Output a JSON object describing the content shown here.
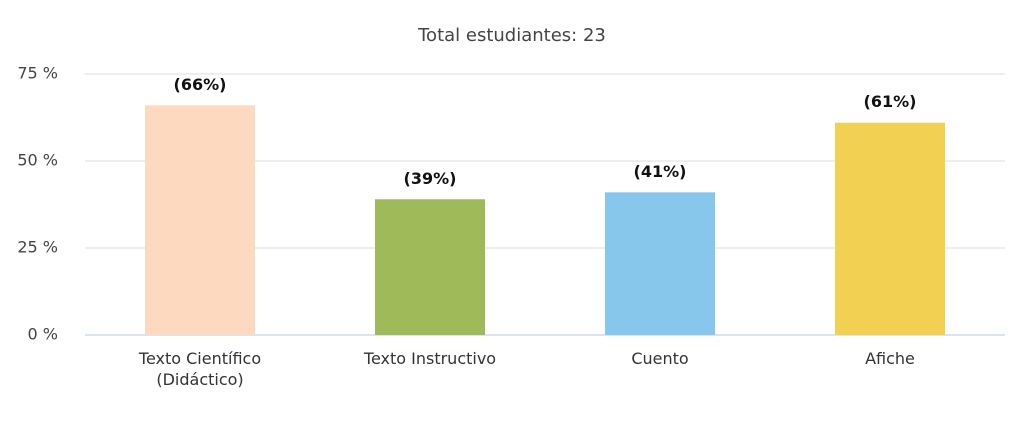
{
  "chart_data": {
    "type": "bar",
    "title": "Total estudiantes: 23",
    "categories": [
      "Texto Científico\n(Didáctico)",
      "Texto Instructivo",
      "Cuento",
      "Afiche"
    ],
    "values": [
      66,
      39,
      41,
      61
    ],
    "value_labels": [
      "(66%)",
      "(39%)",
      "(41%)",
      "(61%)"
    ],
    "colors": [
      "#fdd9bf",
      "#9fba58",
      "#87c7ec",
      "#f2d052"
    ],
    "ylim": [
      0,
      75
    ],
    "yticks": [
      {
        "value": 0,
        "label": "0 %"
      },
      {
        "value": 25,
        "label": "25 %"
      },
      {
        "value": 50,
        "label": "50 %"
      },
      {
        "value": 75,
        "label": "75 %"
      }
    ],
    "grid": true
  }
}
